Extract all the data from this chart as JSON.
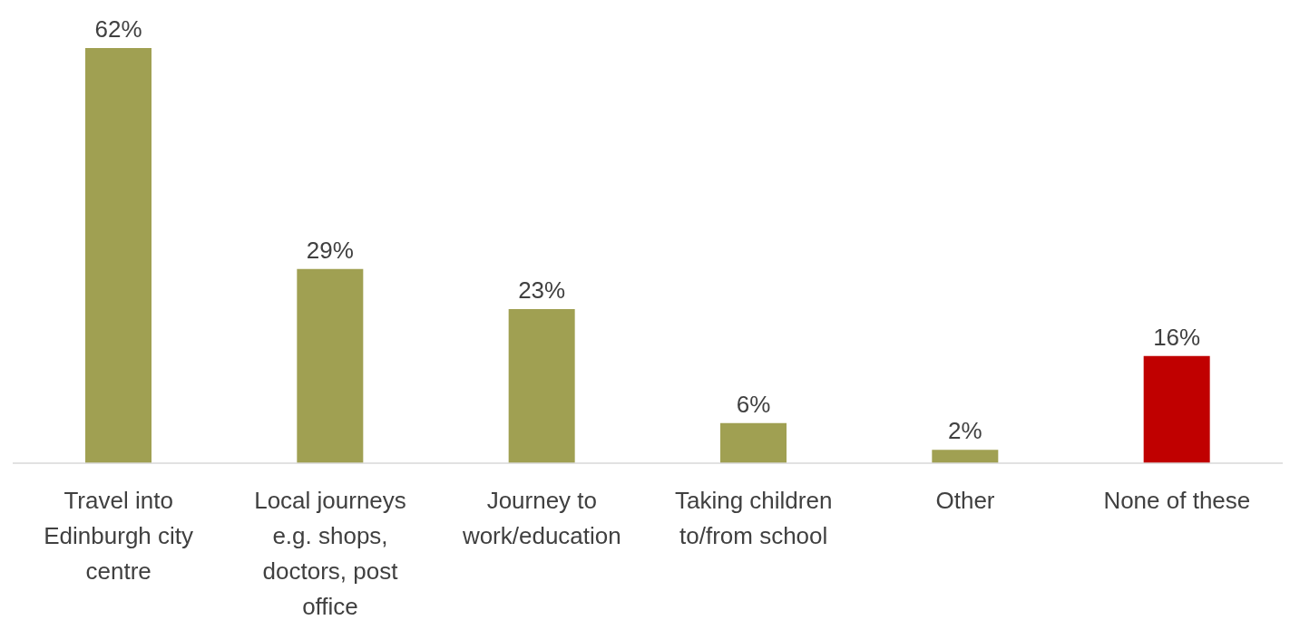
{
  "chart_data": {
    "type": "bar",
    "categories": [
      "Travel into Edinburgh city centre",
      "Local journeys e.g. shops, doctors, post office",
      "Journey to work/education",
      "Taking children to/from school",
      "Other",
      "None of these"
    ],
    "values": [
      62,
      29,
      23,
      6,
      2,
      16
    ],
    "value_labels": [
      "62%",
      "29%",
      "23%",
      "6%",
      "2%",
      "16%"
    ],
    "colors": [
      "#a0a052",
      "#a0a052",
      "#a0a052",
      "#a0a052",
      "#a0a052",
      "#c00000"
    ],
    "grid": false,
    "legend": false
  }
}
